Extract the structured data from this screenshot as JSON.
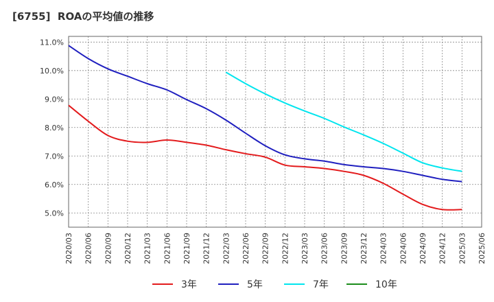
{
  "chart_data": {
    "type": "line",
    "title": "[6755]  ROAの平均値の推移",
    "xlabel": "",
    "ylabel": "",
    "ylim": [
      4.5,
      11.2
    ],
    "y_ticks": [
      5.0,
      6.0,
      7.0,
      8.0,
      9.0,
      10.0,
      11.0
    ],
    "y_tick_labels": [
      "5.0%",
      "6.0%",
      "7.0%",
      "8.0%",
      "9.0%",
      "10.0%",
      "11.0%"
    ],
    "grid": true,
    "legend_position": "bottom",
    "categories": [
      "2020/03",
      "2020/06",
      "2020/09",
      "2020/12",
      "2021/03",
      "2021/06",
      "2021/09",
      "2021/12",
      "2022/03",
      "2022/06",
      "2022/09",
      "2022/12",
      "2023/03",
      "2023/06",
      "2023/09",
      "2023/12",
      "2024/03",
      "2024/06",
      "2024/09",
      "2024/12",
      "2025/03",
      "2025/06"
    ],
    "series": [
      {
        "name": "3年",
        "color": "#e31a1c",
        "values": [
          8.78,
          8.22,
          7.72,
          7.52,
          7.48,
          7.56,
          7.48,
          7.38,
          7.22,
          7.08,
          6.96,
          6.68,
          6.62,
          6.56,
          6.46,
          6.32,
          6.04,
          5.66,
          5.3,
          5.12,
          5.12,
          null
        ]
      },
      {
        "name": "5年",
        "color": "#1f1fbf",
        "values": [
          10.88,
          10.42,
          10.06,
          9.8,
          9.54,
          9.32,
          8.98,
          8.66,
          8.26,
          7.8,
          7.36,
          7.04,
          6.9,
          6.82,
          6.7,
          6.62,
          6.56,
          6.46,
          6.32,
          6.18,
          6.1,
          null
        ]
      },
      {
        "name": "7年",
        "color": "#00e5ee",
        "values": [
          null,
          null,
          null,
          null,
          null,
          null,
          null,
          null,
          9.94,
          9.54,
          9.18,
          8.86,
          8.58,
          8.32,
          8.02,
          7.74,
          7.44,
          7.1,
          6.76,
          6.58,
          6.46,
          null
        ]
      },
      {
        "name": "10年",
        "color": "#1a8c1a",
        "values": [
          null,
          null,
          null,
          null,
          null,
          null,
          null,
          null,
          null,
          null,
          null,
          null,
          null,
          null,
          null,
          null,
          null,
          null,
          null,
          null,
          null,
          null
        ]
      }
    ]
  }
}
